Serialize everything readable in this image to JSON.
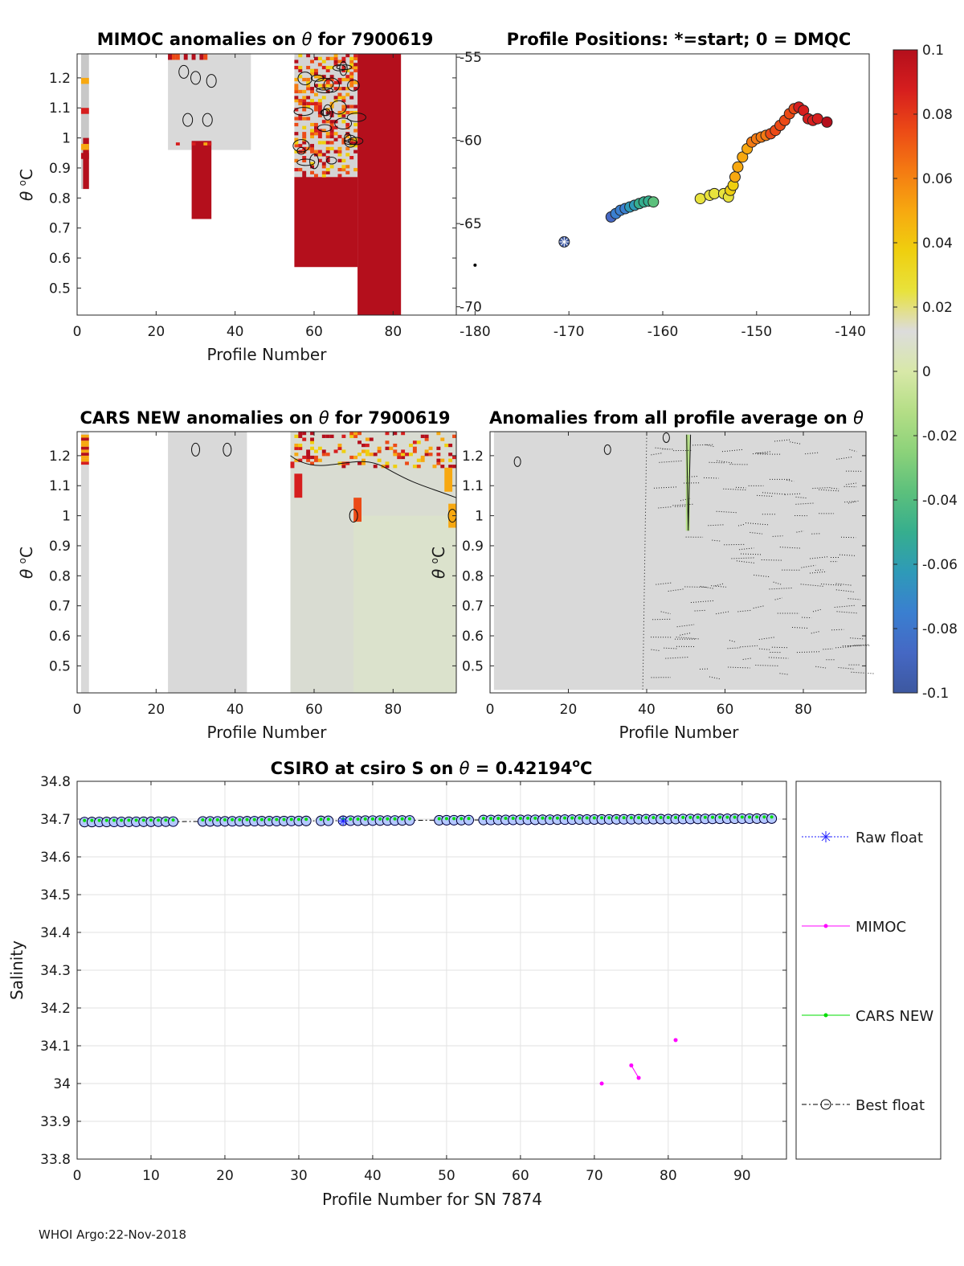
{
  "footer": "WHOI Argo:22-Nov-2018",
  "colorbar": {
    "ticks": [
      "0.1",
      "0.08",
      "0.06",
      "0.04",
      "0.02",
      "0",
      "-0.02",
      "-0.04",
      "-0.06",
      "-0.08",
      "-0.1"
    ],
    "colors": [
      "#b40f1c",
      "#d61e1e",
      "#ec4a16",
      "#f47a12",
      "#f7a810",
      "#efcf0f",
      "#e8e23c",
      "#dcdcdc",
      "#d8e8a8",
      "#b4de86",
      "#8cd27a",
      "#5cc07c",
      "#36ae8e",
      "#2e9ab8",
      "#3a7fd0",
      "#4568c4",
      "#3d58a0"
    ]
  },
  "chart_data": [
    {
      "type": "heatmap",
      "title_prefix": "MIMOC anomalies on ",
      "title_suffix": "  for 7900619",
      "theta": "θ",
      "xlabel": "Profile Number",
      "ylabel_theta": "θ",
      "ylabel_unit": "C",
      "ylabel_sup": "o",
      "xlim": [
        0,
        96
      ],
      "ylim": [
        0.41,
        1.28
      ],
      "xticks": [
        "0",
        "20",
        "40",
        "60",
        "80"
      ],
      "yticks": [
        "0.5",
        "0.6",
        "0.7",
        "0.8",
        "0.9",
        "1",
        "1.1",
        "1.2"
      ],
      "blocks": [
        {
          "x0": 1,
          "x1": 3,
          "ybot": 0.83,
          "ytop": 1.28,
          "color": "#c8c8c8"
        },
        {
          "x0": 1.5,
          "x1": 3,
          "ybot": 0.83,
          "ytop": 1.0,
          "color": "#b40f1c"
        },
        {
          "x0": 23,
          "x1": 44,
          "ybot": 0.96,
          "ytop": 1.28,
          "color": "#d9d9d9"
        },
        {
          "x0": 29,
          "x1": 34,
          "ybot": 0.73,
          "ytop": 0.99,
          "color": "#b40f1c"
        },
        {
          "x0": 55,
          "x1": 71,
          "ybot": 0.57,
          "ytop": 0.87,
          "color": "#b40f1c"
        },
        {
          "x0": 55,
          "x1": 71,
          "ybot": 0.87,
          "ytop": 1.28,
          "color": "#d4d4d4"
        },
        {
          "x0": 71,
          "x1": 82,
          "ybot": 0.41,
          "ytop": 1.28,
          "color": "#b40f1c"
        }
      ]
    },
    {
      "type": "scatter",
      "title": "Profile Positions: *=start; 0 = DMQC",
      "xlim": [
        -182,
        -138
      ],
      "ylim": [
        -70.5,
        -54.8
      ],
      "xticks": [
        "-180",
        "-170",
        "-160",
        "-150",
        "-140"
      ],
      "yticks": [
        "-55",
        "-60",
        "-65",
        "-70"
      ],
      "x": [
        -180.0,
        -170.5,
        -165.5,
        -165.0,
        -164.5,
        -164.0,
        -163.5,
        -163.0,
        -162.5,
        -162.0,
        -161.5,
        -161.0,
        -156.0,
        -155.0,
        -154.5,
        -153.5,
        -153.0,
        -152.8,
        -152.5,
        -152.3,
        -152.0,
        -151.5,
        -151.0,
        -150.5,
        -150.0,
        -149.5,
        -149.0,
        -148.5,
        -148.0,
        -147.5,
        -147.0,
        -146.5,
        -146.0,
        -145.5,
        -145.0,
        -144.5,
        -144.0,
        -143.5,
        -142.5
      ],
      "y": [
        -67.5,
        -66.1,
        -64.6,
        -64.4,
        -64.2,
        -64.1,
        -64.0,
        -63.9,
        -63.8,
        -63.7,
        -63.65,
        -63.7,
        -63.5,
        -63.3,
        -63.2,
        -63.2,
        -63.4,
        -63.0,
        -62.7,
        -62.2,
        -61.6,
        -61.0,
        -60.5,
        -60.1,
        -59.9,
        -59.8,
        -59.7,
        -59.6,
        -59.4,
        -59.1,
        -58.8,
        -58.4,
        -58.1,
        -58.0,
        -58.2,
        -58.7,
        -58.8,
        -58.7,
        -58.9
      ],
      "c": [
        0.0,
        -0.1,
        -0.085,
        -0.08,
        -0.075,
        -0.07,
        -0.065,
        -0.06,
        -0.055,
        -0.05,
        -0.045,
        -0.04,
        0.02,
        0.022,
        0.025,
        0.028,
        0.03,
        0.035,
        0.04,
        0.045,
        0.048,
        0.05,
        0.055,
        0.06,
        0.062,
        0.064,
        0.066,
        0.07,
        0.072,
        0.074,
        0.076,
        0.078,
        0.08,
        0.082,
        0.085,
        0.088,
        0.09,
        0.092,
        0.1
      ]
    },
    {
      "type": "heatmap",
      "title_prefix": "CARS NEW anomalies on ",
      "title_suffix": " for 7900619",
      "theta": "θ",
      "xlabel": "Profile Number",
      "ylabel_theta": "θ",
      "ylabel_unit": "C",
      "ylabel_sup": "o",
      "xlim": [
        0,
        96
      ],
      "ylim": [
        0.41,
        1.28
      ],
      "xticks": [
        "0",
        "20",
        "40",
        "60",
        "80"
      ],
      "yticks": [
        "0.5",
        "0.6",
        "0.7",
        "0.8",
        "0.9",
        "1",
        "1.1",
        "1.2"
      ],
      "blocks": [
        {
          "x0": 1,
          "x1": 3,
          "ybot": 0.41,
          "ytop": 1.28,
          "color": "#d9d9d9"
        },
        {
          "x0": 23,
          "x1": 43,
          "ybot": 0.41,
          "ytop": 1.28,
          "color": "#d9d9d9"
        },
        {
          "x0": 54,
          "x1": 96,
          "ybot": 0.41,
          "ytop": 1.28,
          "color": "#d9dcd2"
        },
        {
          "x0": 70,
          "x1": 96,
          "ybot": 0.41,
          "ytop": 1.0,
          "color": "#dbe2cc"
        }
      ]
    },
    {
      "type": "heatmap",
      "title_prefix": "Anomalies from all profile average on ",
      "title_suffix": "",
      "theta": "θ",
      "xlabel": "Profile Number",
      "ylabel_theta": "θ",
      "ylabel_unit": "C",
      "ylabel_sup": "o",
      "xlim": [
        0,
        96
      ],
      "ylim": [
        0.41,
        1.28
      ],
      "xticks": [
        "0",
        "20",
        "40",
        "60",
        "80"
      ],
      "yticks": [
        "0.5",
        "0.6",
        "0.7",
        "0.8",
        "0.9",
        "1",
        "1.1",
        "1.2"
      ],
      "blocks": [
        {
          "x0": 1,
          "x1": 96,
          "ybot": 0.42,
          "ytop": 1.28,
          "color": "#d9d9d9"
        },
        {
          "x0": 50,
          "x1": 51,
          "ybot": 0.95,
          "ytop": 1.27,
          "color": "#b4de86"
        }
      ]
    },
    {
      "type": "line",
      "title_main": "CSIRO at csiro S on ",
      "title_theta": "θ",
      "title_value": " = 0.42194",
      "title_sup": "o",
      "title_unit": "C",
      "xlabel": "Profile Number for SN 7874",
      "ylabel": "Salinity",
      "xlim": [
        0,
        96
      ],
      "ylim": [
        33.8,
        34.8
      ],
      "xticks": [
        "0",
        "10",
        "20",
        "30",
        "40",
        "50",
        "60",
        "70",
        "80",
        "90"
      ],
      "yticks": [
        "33.8",
        "33.9",
        "34",
        "34.1",
        "34.2",
        "34.3",
        "34.4",
        "34.5",
        "34.6",
        "34.7",
        "34.8"
      ],
      "best_float_x": [
        1,
        2,
        3,
        4,
        5,
        6,
        7,
        8,
        9,
        10,
        11,
        12,
        13,
        17,
        18,
        19,
        20,
        21,
        22,
        23,
        24,
        25,
        26,
        27,
        28,
        29,
        30,
        31,
        33,
        34,
        36,
        37,
        38,
        39,
        40,
        41,
        42,
        43,
        44,
        45,
        49,
        50,
        51,
        52,
        53,
        55,
        56,
        57,
        58,
        59,
        60,
        61,
        62,
        63,
        64,
        65,
        66,
        67,
        68,
        69,
        70,
        71,
        72,
        73,
        74,
        75,
        76,
        77,
        78,
        79,
        80,
        81,
        82,
        83,
        84,
        85,
        86,
        87,
        88,
        89,
        90,
        91,
        92,
        93,
        94
      ],
      "best_float_base": 34.692,
      "best_float_slope": 0.0001,
      "mimoc_points": [
        [
          71,
          34.0
        ],
        [
          75,
          34.048
        ],
        [
          76,
          34.015
        ],
        [
          81,
          34.115
        ]
      ],
      "legend": [
        "Raw float",
        "MIMOC",
        "CARS NEW",
        "Best float"
      ],
      "series_colors": {
        "raw": "#1e1eff",
        "mimoc": "#ff00ff",
        "cars": "#00dd00",
        "best": "#000000"
      }
    }
  ]
}
